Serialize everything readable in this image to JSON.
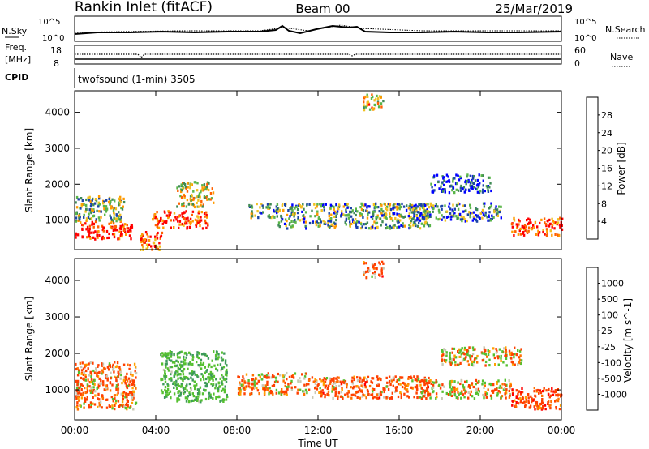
{
  "header": {
    "station": "Rankin Inlet (fitACF)",
    "beam": "Beam 00",
    "date": "25/Mar/2019"
  },
  "noise_panel": {
    "left_label": "N.Sky",
    "right_label": "N.Search",
    "left_ticks": [
      "10^5",
      "10^0"
    ],
    "right_ticks": [
      "10^5",
      "10^0"
    ]
  },
  "freq_panel": {
    "left_label_1": "Freq.",
    "left_label_2": "[MHz]",
    "right_label": "Nave",
    "left_ticks": [
      "18",
      "8"
    ],
    "right_ticks": [
      "60",
      "0"
    ]
  },
  "cpid": {
    "label": "CPID",
    "program": "twofsound (1-min) 3505"
  },
  "chart_data": [
    {
      "type": "heatmap",
      "name": "power",
      "ylabel": "Slant Range [km]",
      "ylim": [
        180,
        4600
      ],
      "yticks": [
        1000,
        2000,
        3000,
        4000
      ],
      "xlim": [
        0,
        24
      ],
      "colorbar": {
        "label": "Power [dB]",
        "range": [
          0,
          32
        ],
        "ticks": [
          "28",
          "24",
          "20",
          "16",
          "12",
          "8",
          "4"
        ],
        "colors": [
          "#0000ff",
          "#1c45a6",
          "#3f8a55",
          "#59b548",
          "#f0c020",
          "#ff9a00",
          "#ff6000",
          "#ff0000"
        ]
      },
      "regions": [
        {
          "t": [
            0.0,
            2.8
          ],
          "r": [
            500,
            1000
          ],
          "value": 30
        },
        {
          "t": [
            0.0,
            2.4
          ],
          "r": [
            1000,
            1700
          ],
          "value": 14
        },
        {
          "t": [
            3.2,
            4.3
          ],
          "r": [
            200,
            700
          ],
          "value": 26
        },
        {
          "t": [
            3.8,
            6.6
          ],
          "r": [
            800,
            1300
          ],
          "value": 29
        },
        {
          "t": [
            5.0,
            6.8
          ],
          "r": [
            1400,
            2100
          ],
          "value": 18
        },
        {
          "t": [
            8.5,
            10.0
          ],
          "r": [
            1100,
            1500
          ],
          "value": 13
        },
        {
          "t": [
            10.0,
            17.5
          ],
          "r": [
            800,
            1500
          ],
          "value": 12
        },
        {
          "t": [
            16.5,
            21.0
          ],
          "r": [
            1000,
            1500
          ],
          "value": 9
        },
        {
          "t": [
            17.5,
            20.5
          ],
          "r": [
            1800,
            2300
          ],
          "value": 5
        },
        {
          "t": [
            21.5,
            24.0
          ],
          "r": [
            600,
            1100
          ],
          "value": 28
        },
        {
          "t": [
            14.2,
            15.2
          ],
          "r": [
            4100,
            4550
          ],
          "value": 20
        }
      ]
    },
    {
      "type": "heatmap",
      "name": "velocity",
      "ylabel": "Slant Range [km]",
      "ylim": [
        180,
        4600
      ],
      "yticks": [
        1000,
        2000,
        3000,
        4000
      ],
      "xlim": [
        0,
        24
      ],
      "xticks": [
        "00:00",
        "04:00",
        "08:00",
        "12:00",
        "16:00",
        "20:00",
        "00:00"
      ],
      "xlabel": "Time UT",
      "colorbar": {
        "label": "Velocity [m s^-1]",
        "ticks": [
          "1000",
          "500",
          "100",
          "25",
          "-25",
          "-100",
          "-500",
          "-1000"
        ],
        "colors": [
          "#ff0000",
          "#ff4000",
          "#ff7000",
          "#ffa000",
          "#c8c8b4",
          "#55c030",
          "#3d9a5a",
          "#245aa0",
          "#1535ff"
        ]
      },
      "regions": [
        {
          "t": [
            0.0,
            3.0
          ],
          "r": [
            500,
            1800
          ],
          "value": -150
        },
        {
          "t": [
            4.2,
            7.5
          ],
          "r": [
            700,
            2100
          ],
          "value": 400
        },
        {
          "t": [
            8.0,
            11.5
          ],
          "r": [
            900,
            1500
          ],
          "value": -60
        },
        {
          "t": [
            11.5,
            17.5
          ],
          "r": [
            800,
            1400
          ],
          "value": -200
        },
        {
          "t": [
            17.0,
            21.5
          ],
          "r": [
            800,
            1300
          ],
          "value": 10
        },
        {
          "t": [
            18.0,
            22.0
          ],
          "r": [
            1700,
            2200
          ],
          "value": 0
        },
        {
          "t": [
            21.5,
            24.0
          ],
          "r": [
            500,
            1100
          ],
          "value": -300
        },
        {
          "t": [
            14.2,
            15.2
          ],
          "r": [
            4100,
            4550
          ],
          "value": -200
        }
      ]
    }
  ]
}
